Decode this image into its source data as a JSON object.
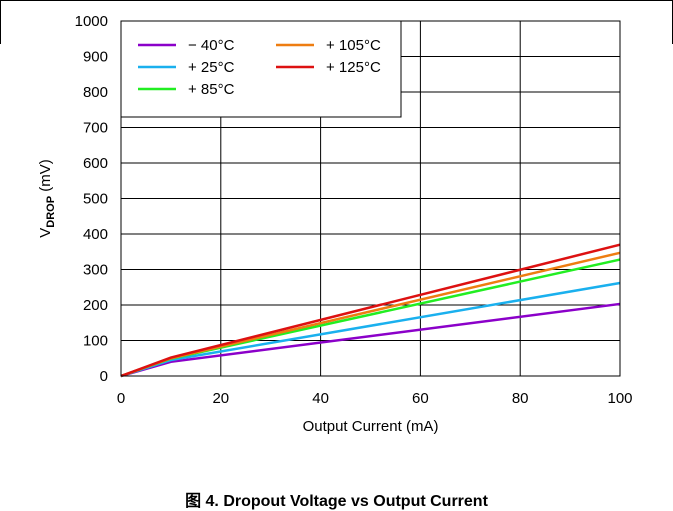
{
  "caption": "图 4. Dropout Voltage vs Output Current",
  "chart_data": {
    "type": "line",
    "xlabel": "Output Current (mA)",
    "ylabel_main": "V",
    "ylabel_sub": "DROP",
    "ylabel_unit": " (mV)",
    "xlim": [
      0,
      100
    ],
    "ylim": [
      0,
      1000
    ],
    "x_ticks": [
      "0",
      "20",
      "40",
      "60",
      "80",
      "100"
    ],
    "y_ticks": [
      "0",
      "100",
      "200",
      "300",
      "400",
      "500",
      "600",
      "700",
      "800",
      "900",
      "1000"
    ],
    "grid": true,
    "legend_placement": "top-left",
    "series": [
      {
        "name": "− 40°C",
        "color": "#8b00c9",
        "x": [
          0,
          10,
          100
        ],
        "y": [
          0,
          40,
          203
        ]
      },
      {
        "name": "+ 25°C",
        "color": "#1ab0ee",
        "x": [
          0,
          10,
          100
        ],
        "y": [
          0,
          45,
          262
        ]
      },
      {
        "name": "+ 85°C",
        "color": "#22ee22",
        "x": [
          0,
          10,
          100
        ],
        "y": [
          0,
          49,
          328
        ]
      },
      {
        "name": "+ 105°C",
        "color": "#ee7d11",
        "x": [
          0,
          10,
          100
        ],
        "y": [
          0,
          50,
          347
        ]
      },
      {
        "name": "+ 125°C",
        "color": "#dd1111",
        "x": [
          0,
          10,
          100
        ],
        "y": [
          0,
          52,
          370
        ]
      }
    ]
  }
}
